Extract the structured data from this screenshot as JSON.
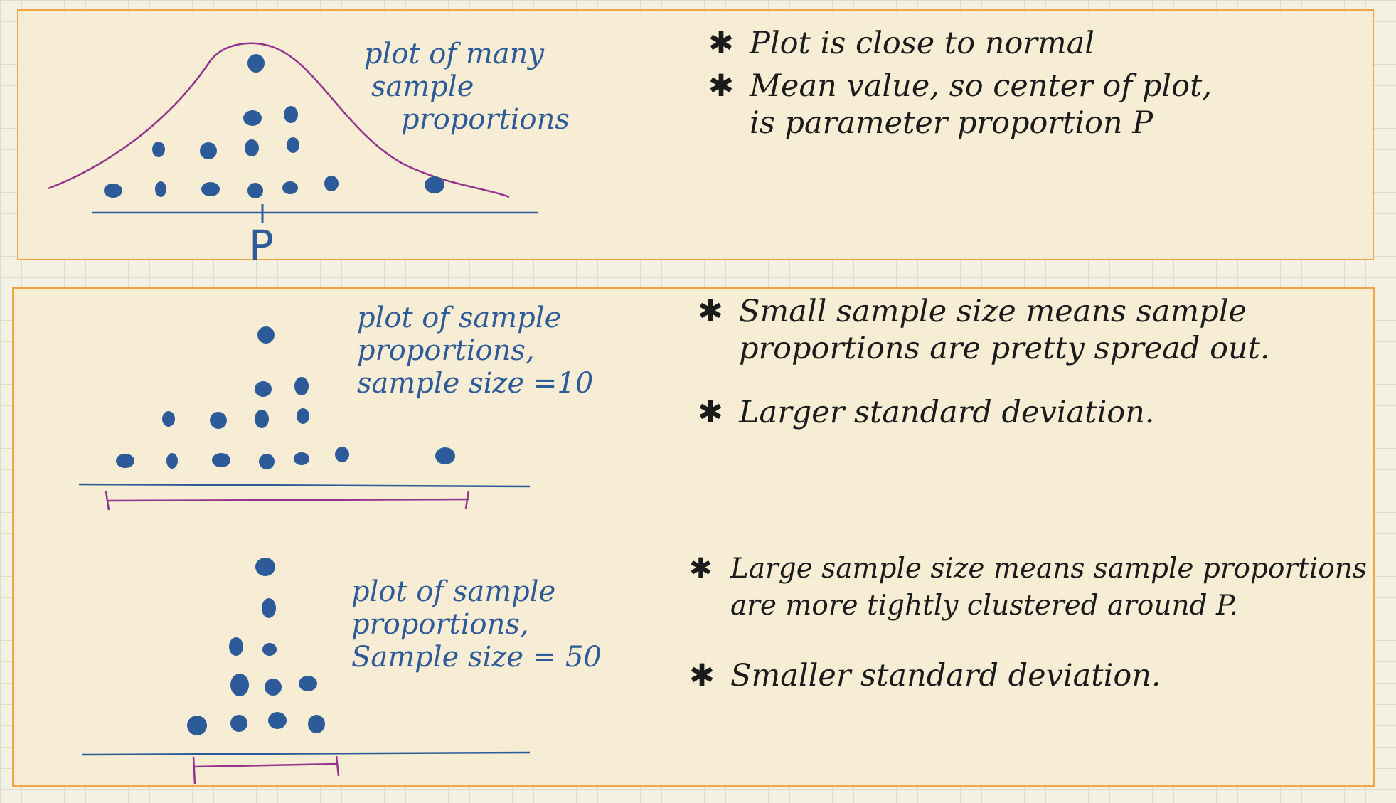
{
  "top_panel": {
    "figure_caption": [
      "plot of many",
      "sample",
      "proportions"
    ],
    "axis_label": "P",
    "notes": [
      {
        "icon": "star-bullet-icon",
        "glyph": "✱",
        "lines": [
          "Plot is close to normal"
        ]
      },
      {
        "icon": "star-bullet-icon",
        "glyph": "✱",
        "lines": [
          "Mean value, so center of plot,",
          "is parameter proportion P"
        ]
      }
    ]
  },
  "middle_figure": {
    "caption": [
      "plot of sample",
      "proportions,",
      "sample size =10"
    ],
    "notes": [
      {
        "icon": "star-bullet-icon",
        "glyph": "✱",
        "lines": [
          "Small sample size means sample",
          "proportions are pretty spread out."
        ]
      },
      {
        "icon": "star-bullet-icon",
        "glyph": "✱",
        "lines": [
          "Larger standard deviation."
        ]
      }
    ]
  },
  "bottom_figure": {
    "caption": [
      "plot of sample",
      "proportions,",
      "Sample size = 50"
    ],
    "notes": [
      {
        "icon": "star-bullet-icon",
        "glyph": "✱",
        "lines": [
          "Large sample size means sample proportions",
          "are more tightly clustered around P."
        ]
      },
      {
        "icon": "star-bullet-icon",
        "glyph": "✱",
        "lines": [
          "Smaller standard deviation."
        ]
      }
    ]
  },
  "colors": {
    "ink_blue": "#2d5a98",
    "ink_purple": "#93338d",
    "panel_border": "#efa544",
    "panel_fill": "#f7ecd3"
  }
}
